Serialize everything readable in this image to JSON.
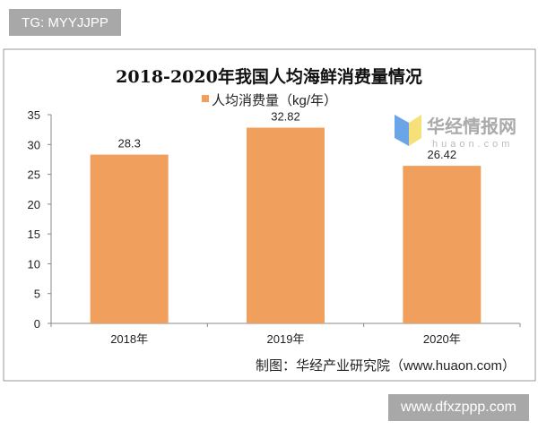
{
  "watermark_top": "TG: MYYJJPP",
  "watermark_bottom": "www.dfxzppp.com",
  "logo_text": "华经情报网",
  "logo_sub": "huaon.com",
  "chart_data": {
    "type": "bar",
    "title": "2018-2020年我国人均海鲜消费量情况",
    "legend": {
      "position": "top",
      "entries": [
        "人均消费量（kg/年）"
      ]
    },
    "categories": [
      "2018年",
      "2019年",
      "2020年"
    ],
    "series": [
      {
        "name": "人均消费量（kg/年）",
        "values": [
          28.3,
          32.82,
          26.42
        ],
        "labels": [
          "28.3",
          "32.82",
          "26.42"
        ],
        "color": "#f0a05c"
      }
    ],
    "ylim": [
      0,
      35
    ],
    "yticks": [
      0,
      5,
      10,
      15,
      20,
      25,
      30,
      35
    ],
    "grid": false,
    "source": "制图：华经产业研究院（www.huaon.com）"
  }
}
